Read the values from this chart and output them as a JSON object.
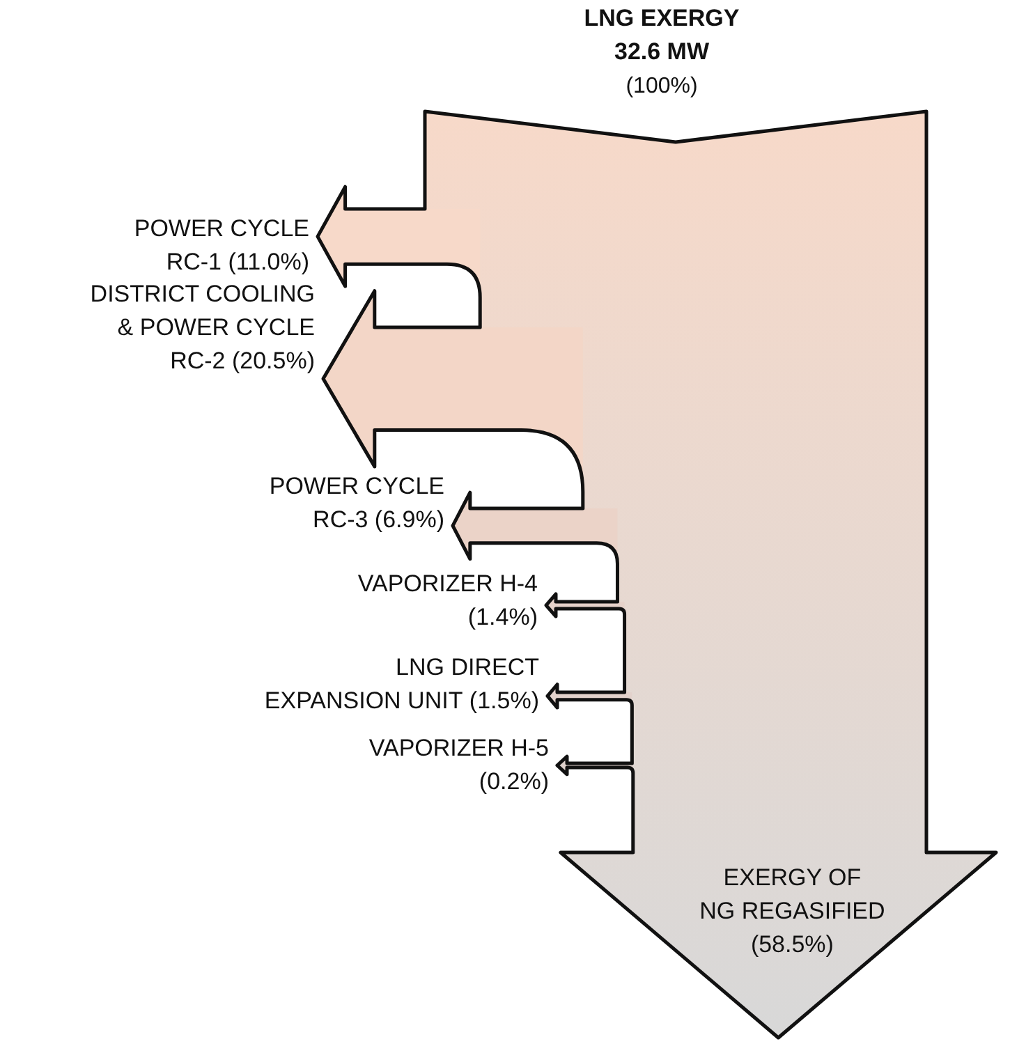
{
  "chart_data": {
    "type": "other",
    "title": "LNG EXERGY",
    "subtitle": "32.6 MW",
    "annotations": [
      "(100%)"
    ],
    "categories": [
      "POWER CYCLE\nRC-1",
      "DISTRICT COOLING\n& POWER CYCLE\nRC-2",
      "POWER CYCLE\nRC-3",
      "VAPORIZER H-4\n",
      "LNG DIRECT\nEXPANSION UNIT",
      "VAPORIZER H-5\n",
      "EXERGY OF\nNG REGASIFIED\n"
    ],
    "values": [
      11.0,
      20.5,
      6.9,
      1.4,
      1.5,
      0.2,
      58.5
    ],
    "value_labels": [
      "(11.0%)",
      "(20.5%)",
      "(6.9%)",
      "(1.4%)",
      "(1.5%)",
      "(0.2%)",
      "(58.5%)"
    ],
    "colors": [
      "#f7d9c9",
      "#f3d6c7",
      "#ebd3c8",
      "#e6d2ca",
      "#e3d2cc",
      "#e0d2cd",
      "#d8d8d8"
    ]
  }
}
